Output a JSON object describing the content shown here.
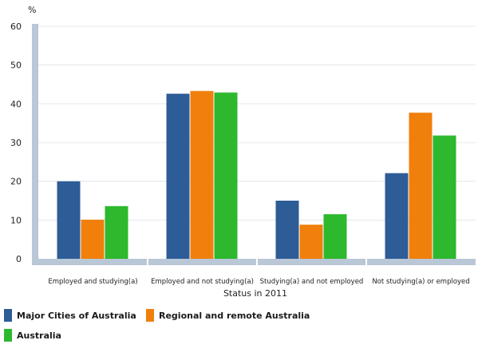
{
  "chart_data": {
    "type": "bar",
    "ylabel": "%",
    "xlabel": "Status in 2011",
    "ylim": [
      0,
      60
    ],
    "yticks": [
      0,
      10,
      20,
      30,
      40,
      50,
      60
    ],
    "grid": true,
    "categories": [
      "Employed and studying(a)",
      "Employed and not studying(a)",
      "Studying(a) and not employed",
      "Not studying(a) or employed"
    ],
    "series": [
      {
        "name": "Major Cities of Australia",
        "color": "#2e5c97",
        "values": [
          20.0,
          42.6,
          15.0,
          22.1
        ]
      },
      {
        "name": "Regional and remote Australia",
        "color": "#f07f0c",
        "values": [
          10.1,
          43.3,
          8.8,
          37.7
        ]
      },
      {
        "name": "Australia",
        "color": "#2eb82e",
        "values": [
          13.6,
          42.9,
          11.5,
          31.8
        ]
      }
    ],
    "legend_position": "bottom"
  }
}
